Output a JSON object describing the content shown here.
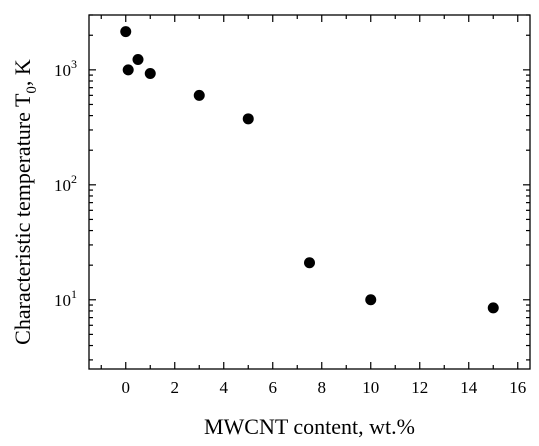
{
  "chart_data": {
    "type": "scatter",
    "xlabel": "MWCNT content, wt.%",
    "ylabel": "Characteristic temperature T",
    "ylabel_subscript": "0",
    "ylabel_suffix": ", K",
    "xlim": [
      -1.5,
      16.5
    ],
    "ylim": [
      2.5,
      3000
    ],
    "yscale": "log",
    "grid": false,
    "x_ticks": [
      0,
      2,
      4,
      6,
      8,
      10,
      12,
      14,
      16
    ],
    "x_tick_labels": [
      "0",
      "2",
      "4",
      "6",
      "8",
      "10",
      "12",
      "14",
      "16"
    ],
    "y_major_ticks": [
      10,
      100,
      1000
    ],
    "y_tick_labels": [
      {
        "base": "10",
        "exp": "1"
      },
      {
        "base": "10",
        "exp": "2"
      },
      {
        "base": "10",
        "exp": "3"
      }
    ],
    "series": [
      {
        "x": [
          0,
          0.1,
          0.5,
          1,
          3,
          5,
          7.5,
          10,
          15
        ],
        "y": [
          2150,
          1000,
          1230,
          930,
          600,
          375,
          21,
          10,
          8.5
        ]
      }
    ],
    "marker_color": "#000000"
  }
}
